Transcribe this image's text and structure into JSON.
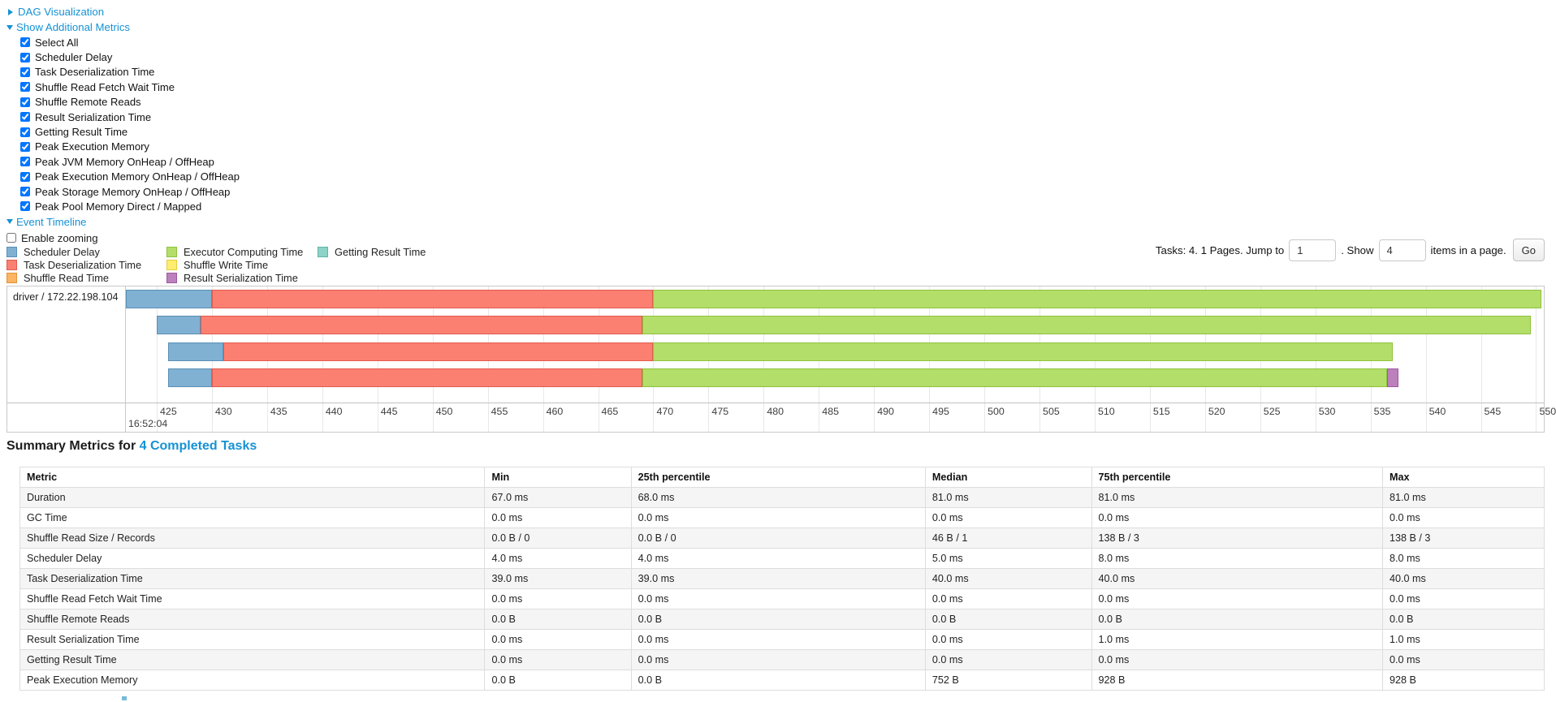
{
  "colors": {
    "link": "#1592d4",
    "table_border": "#dddddd",
    "row_stripe": "#f5f5f5",
    "chart_border": "#c9c9c9",
    "gridline": "#e8e8e8",
    "series": {
      "scheduler_delay": {
        "fill": "#80B1D3",
        "border": "#5a8fb6"
      },
      "task_deserialization": {
        "fill": "#FB8072",
        "border": "#e25a4c"
      },
      "shuffle_read": {
        "fill": "#FDB462",
        "border": "#e0933a"
      },
      "executor_computing": {
        "fill": "#B3DE69",
        "border": "#8fc23e"
      },
      "shuffle_write": {
        "fill": "#FFED6F",
        "border": "#e3cd3f"
      },
      "result_serialization": {
        "fill": "#BC80BD",
        "border": "#9d5a9f"
      },
      "getting_result": {
        "fill": "#8DD3C7",
        "border": "#5fb5a5"
      }
    }
  },
  "sections": {
    "dag": {
      "label": "DAG Visualization",
      "collapsed": true
    },
    "metrics": {
      "label": "Show Additional Metrics",
      "collapsed": false,
      "checkboxes": [
        {
          "label": "Select All",
          "checked": true
        },
        {
          "label": "Scheduler Delay",
          "checked": true
        },
        {
          "label": "Task Deserialization Time",
          "checked": true
        },
        {
          "label": "Shuffle Read Fetch Wait Time",
          "checked": true
        },
        {
          "label": "Shuffle Remote Reads",
          "checked": true
        },
        {
          "label": "Result Serialization Time",
          "checked": true
        },
        {
          "label": "Getting Result Time",
          "checked": true
        },
        {
          "label": "Peak Execution Memory",
          "checked": true
        },
        {
          "label": "Peak JVM Memory OnHeap / OffHeap",
          "checked": true
        },
        {
          "label": "Peak Execution Memory OnHeap / OffHeap",
          "checked": true
        },
        {
          "label": "Peak Storage Memory OnHeap / OffHeap",
          "checked": true
        },
        {
          "label": "Peak Pool Memory Direct / Mapped",
          "checked": true
        }
      ]
    },
    "timeline": {
      "label": "Event Timeline",
      "collapsed": false,
      "enable_zooming": {
        "label": "Enable zooming",
        "checked": false
      }
    }
  },
  "legend": {
    "columns": [
      [
        {
          "label": "Scheduler Delay",
          "series": "scheduler_delay"
        },
        {
          "label": "Task Deserialization Time",
          "series": "task_deserialization"
        },
        {
          "label": "Shuffle Read Time",
          "series": "shuffle_read"
        }
      ],
      [
        {
          "label": "Executor Computing Time",
          "series": "executor_computing"
        },
        {
          "label": "Shuffle Write Time",
          "series": "shuffle_write"
        },
        {
          "label": "Result Serialization Time",
          "series": "result_serialization"
        }
      ],
      [
        {
          "label": "Getting Result Time",
          "series": "getting_result"
        }
      ]
    ]
  },
  "pagination": {
    "tasks_text": "Tasks: 4. 1 Pages. Jump to",
    "jump_value": "1",
    "show_text": ". Show",
    "show_value": "4",
    "items_text": "items in a page.",
    "go_label": "Go"
  },
  "chart_data": {
    "type": "timeline",
    "row_label": "driver / 172.22.198.104",
    "axis": {
      "major_label": "16:52:04",
      "unit": "ms",
      "tick_start": 425,
      "tick_end": 550,
      "tick_step": 5,
      "domain_min": 422.2,
      "domain_max": 550.7
    },
    "tasks": [
      {
        "segments": [
          {
            "series": "scheduler_delay",
            "start": 422.2,
            "end": 430.0
          },
          {
            "series": "task_deserialization",
            "start": 430.0,
            "end": 470.0
          },
          {
            "series": "executor_computing",
            "start": 470.0,
            "end": 550.5
          }
        ]
      },
      {
        "segments": [
          {
            "series": "scheduler_delay",
            "start": 425.0,
            "end": 429.0
          },
          {
            "series": "task_deserialization",
            "start": 429.0,
            "end": 469.0
          },
          {
            "series": "executor_computing",
            "start": 469.0,
            "end": 549.5
          }
        ]
      },
      {
        "segments": [
          {
            "series": "scheduler_delay",
            "start": 426.0,
            "end": 431.0
          },
          {
            "series": "task_deserialization",
            "start": 431.0,
            "end": 470.0
          },
          {
            "series": "executor_computing",
            "start": 470.0,
            "end": 537.0
          }
        ]
      },
      {
        "segments": [
          {
            "series": "scheduler_delay",
            "start": 426.0,
            "end": 430.0
          },
          {
            "series": "task_deserialization",
            "start": 430.0,
            "end": 469.0
          },
          {
            "series": "executor_computing",
            "start": 469.0,
            "end": 536.5
          },
          {
            "series": "result_serialization",
            "start": 536.5,
            "end": 537.5
          }
        ]
      }
    ]
  },
  "summary": {
    "title_prefix": "Summary Metrics for ",
    "title_link": "4 Completed Tasks",
    "columns": [
      "Metric",
      "Min",
      "25th percentile",
      "Median",
      "75th percentile",
      "Max"
    ],
    "rows": [
      [
        "Duration",
        "67.0 ms",
        "68.0 ms",
        "81.0 ms",
        "81.0 ms",
        "81.0 ms"
      ],
      [
        "GC Time",
        "0.0 ms",
        "0.0 ms",
        "0.0 ms",
        "0.0 ms",
        "0.0 ms"
      ],
      [
        "Shuffle Read Size / Records",
        "0.0 B / 0",
        "0.0 B / 0",
        "46 B / 1",
        "138 B / 3",
        "138 B / 3"
      ],
      [
        "Scheduler Delay",
        "4.0 ms",
        "4.0 ms",
        "5.0 ms",
        "8.0 ms",
        "8.0 ms"
      ],
      [
        "Task Deserialization Time",
        "39.0 ms",
        "39.0 ms",
        "40.0 ms",
        "40.0 ms",
        "40.0 ms"
      ],
      [
        "Shuffle Read Fetch Wait Time",
        "0.0 ms",
        "0.0 ms",
        "0.0 ms",
        "0.0 ms",
        "0.0 ms"
      ],
      [
        "Shuffle Remote Reads",
        "0.0 B",
        "0.0 B",
        "0.0 B",
        "0.0 B",
        "0.0 B"
      ],
      [
        "Result Serialization Time",
        "0.0 ms",
        "0.0 ms",
        "0.0 ms",
        "1.0 ms",
        "1.0 ms"
      ],
      [
        "Getting Result Time",
        "0.0 ms",
        "0.0 ms",
        "0.0 ms",
        "0.0 ms",
        "0.0 ms"
      ],
      [
        "Peak Execution Memory",
        "0.0 B",
        "0.0 B",
        "752 B",
        "928 B",
        "928 B"
      ]
    ]
  }
}
